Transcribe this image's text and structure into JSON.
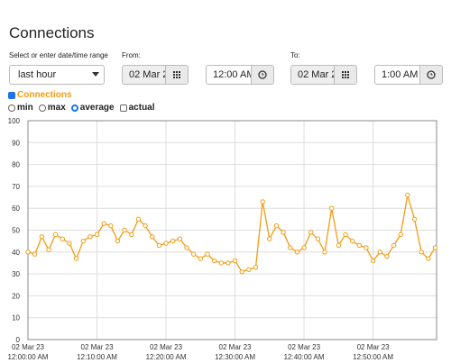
{
  "title": "Connections",
  "range_label": "Select or enter date/time range",
  "range_select": "last hour",
  "from": {
    "label": "From:",
    "date": "02 Mar 2",
    "time": "12:00 AM"
  },
  "to": {
    "label": "To:",
    "date": "02 Mar 2",
    "time": "1:00 AM"
  },
  "series_toggle": {
    "label": "Connections",
    "checked": true
  },
  "modes": [
    {
      "label": "min",
      "kind": "radio",
      "checked": false
    },
    {
      "label": "max",
      "kind": "radio",
      "checked": false
    },
    {
      "label": "average",
      "kind": "radio",
      "checked": true
    },
    {
      "label": "actual",
      "kind": "checkbox",
      "checked": false
    }
  ],
  "chart_data": {
    "type": "line",
    "color": "#f39c12",
    "grid": true,
    "x": [
      0,
      1,
      2,
      3,
      4,
      5,
      6,
      7,
      8,
      9,
      10,
      11,
      12,
      13,
      14,
      15,
      16,
      17,
      18,
      19,
      20,
      21,
      22,
      23,
      24,
      25,
      26,
      27,
      28,
      29,
      30,
      31,
      32,
      33,
      34,
      35,
      36,
      37,
      38,
      39,
      40,
      41,
      42,
      43,
      44,
      45,
      46,
      47,
      48,
      49,
      50,
      51,
      52,
      53,
      54,
      55,
      56,
      57,
      58,
      59
    ],
    "values": [
      40,
      39,
      47,
      41,
      48,
      46,
      44,
      37,
      45,
      47,
      48,
      53,
      52,
      45,
      50,
      48,
      55,
      52,
      47,
      43,
      44,
      45,
      46,
      42,
      39,
      37,
      39,
      36,
      35,
      35,
      36,
      31,
      32,
      33,
      63,
      46,
      52,
      49,
      42,
      40,
      42,
      49,
      46,
      40,
      60,
      43,
      48,
      45,
      43,
      42,
      36,
      40,
      38,
      43,
      48,
      66,
      55,
      40,
      37,
      42
    ],
    "xlim": [
      0,
      59.2
    ],
    "xticks": [
      {
        "value": 0,
        "label": [
          "02 Mar 23",
          "12:00:00 AM"
        ]
      },
      {
        "value": 10,
        "label": [
          "02 Mar 23",
          "12:10:00 AM"
        ]
      },
      {
        "value": 20,
        "label": [
          "02 Mar 23",
          "12:20:00 AM"
        ]
      },
      {
        "value": 30,
        "label": [
          "02 Mar 23",
          "12:30:00 AM"
        ]
      },
      {
        "value": 40,
        "label": [
          "02 Mar 23",
          "12:40:00 AM"
        ]
      },
      {
        "value": 50,
        "label": [
          "02 Mar 23",
          "12:50:00 AM"
        ]
      }
    ],
    "ylim": [
      0,
      100
    ],
    "yticks": [
      0,
      10,
      20,
      30,
      40,
      50,
      60,
      70,
      80,
      90,
      100
    ]
  }
}
